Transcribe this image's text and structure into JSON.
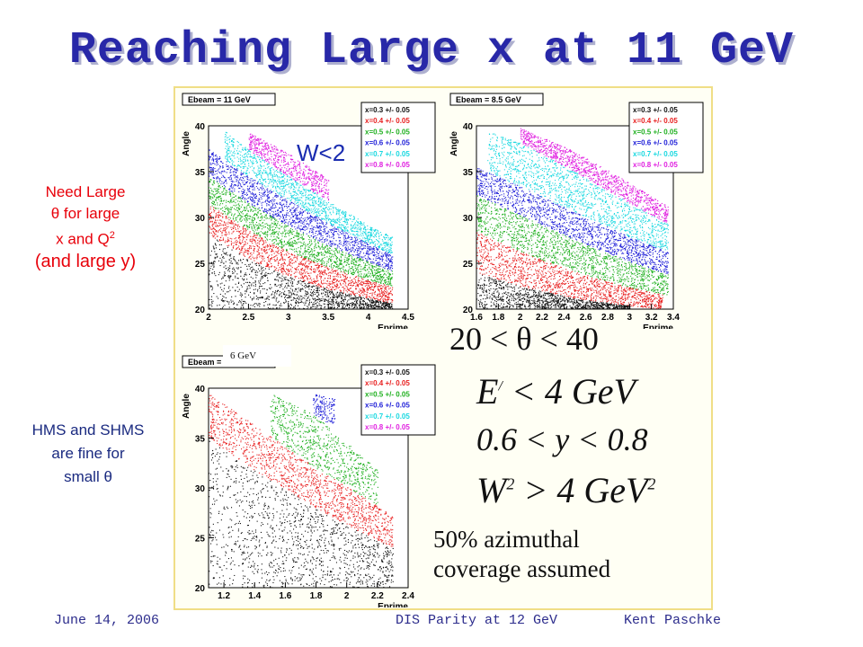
{
  "slide": {
    "title": "Reaching Large x  at 11 GeV",
    "side_red": {
      "line1": "Need Large",
      "line2": "θ for large",
      "line3": "x and Q",
      "sup": "2",
      "line4": "(and large y)"
    },
    "side_blue": {
      "line1": "HMS and SHMS",
      "line2": "are fine for",
      "line3": "small θ"
    },
    "w_label": "W<2",
    "gev_label": "6 GeV",
    "conditions": {
      "c1": "20 < θ < 40",
      "c2a": "E",
      "c2b": "/",
      "c2c": "<  4 GeV",
      "c3": "0.6 <  y  <  0.8",
      "c4a": "W",
      "c4b": "2",
      "c4c": ">  4  GeV",
      "c4d": "2"
    },
    "azimuthal": {
      "line1": "50%  azimuthal",
      "line2": "coverage  assumed"
    },
    "footer": {
      "date": "June 14, 2006",
      "event": "DIS Parity at 12 GeV",
      "author": "Kent Paschke"
    }
  },
  "colors": {
    "x03": "#111111",
    "x04": "#e82020",
    "x05": "#20b020",
    "x06": "#2020d8",
    "x07": "#18d8e0",
    "x08": "#e020e0"
  },
  "chart_data": [
    {
      "type": "scatter",
      "title": "Ebeam = 11 GeV",
      "xlabel": "Eprime",
      "ylabel": "Angle",
      "xlim": [
        2,
        4.5
      ],
      "ylim": [
        20,
        40
      ],
      "xticks": [
        "2",
        "2.5",
        "3",
        "3.5",
        "4",
        "4.5"
      ],
      "yticks": [
        "20",
        "25",
        "30",
        "35",
        "40"
      ],
      "legend": [
        "x=0.3 +/- 0.05",
        "x=0.4 +/- 0.05",
        "x=0.5 +/- 0.05",
        "x=0.6 +/- 0.05",
        "x=0.7 +/- 0.05",
        "x=0.8 +/- 0.05"
      ],
      "legend_position": "top-right",
      "series": [
        {
          "name": "x=0.3 +/- 0.05",
          "color": "#111111",
          "top": [
            [
              2.0,
              28.2
            ],
            [
              2.5,
              25.5
            ],
            [
              3.0,
              23.6
            ],
            [
              3.5,
              22.2
            ],
            [
              4.0,
              21.2
            ],
            [
              4.3,
              20.7
            ]
          ],
          "bottom": [
            [
              2.0,
              20.0
            ],
            [
              4.3,
              20.0
            ]
          ]
        },
        {
          "name": "x=0.4 +/- 0.05",
          "color": "#e82020",
          "top": [
            [
              2.0,
              31.5
            ],
            [
              2.5,
              28.6
            ],
            [
              3.0,
              26.3
            ],
            [
              3.5,
              24.6
            ],
            [
              4.0,
              23.2
            ],
            [
              4.3,
              22.5
            ]
          ],
          "bottom": [
            [
              2.0,
              28.2
            ],
            [
              2.5,
              25.5
            ],
            [
              3.0,
              23.6
            ],
            [
              3.5,
              22.2
            ],
            [
              4.0,
              21.2
            ],
            [
              4.3,
              20.7
            ]
          ]
        },
        {
          "name": "x=0.5 +/- 0.05",
          "color": "#20b020",
          "top": [
            [
              2.0,
              34.5
            ],
            [
              2.5,
              31.6
            ],
            [
              3.0,
              29.1
            ],
            [
              3.5,
              27.0
            ],
            [
              4.0,
              25.2
            ],
            [
              4.3,
              24.2
            ]
          ],
          "bottom": [
            [
              2.0,
              31.5
            ],
            [
              2.5,
              28.6
            ],
            [
              3.0,
              26.3
            ],
            [
              3.5,
              24.6
            ],
            [
              4.0,
              23.2
            ],
            [
              4.3,
              22.5
            ]
          ]
        },
        {
          "name": "x=0.6 +/- 0.05",
          "color": "#2020d8",
          "top": [
            [
              2.0,
              37.5
            ],
            [
              2.5,
              34.5
            ],
            [
              3.0,
              31.9
            ],
            [
              3.5,
              29.4
            ],
            [
              4.0,
              27.2
            ],
            [
              4.3,
              26.0
            ]
          ],
          "bottom": [
            [
              2.0,
              34.5
            ],
            [
              2.5,
              31.6
            ],
            [
              3.0,
              29.1
            ],
            [
              3.5,
              27.0
            ],
            [
              4.0,
              25.2
            ],
            [
              4.3,
              24.2
            ]
          ]
        },
        {
          "name": "x=0.7 +/- 0.05",
          "color": "#18d8e0",
          "top": [
            [
              2.2,
              39.5
            ],
            [
              2.5,
              37.4
            ],
            [
              3.0,
              34.5
            ],
            [
              3.5,
              31.8
            ],
            [
              4.0,
              29.2
            ],
            [
              4.3,
              27.9
            ]
          ],
          "bottom": [
            [
              2.0,
              37.5
            ],
            [
              2.5,
              34.5
            ],
            [
              3.0,
              31.9
            ],
            [
              3.5,
              29.4
            ],
            [
              4.0,
              27.2
            ],
            [
              4.3,
              26.0
            ]
          ]
        },
        {
          "name": "x=0.8 +/- 0.05",
          "color": "#e020e0",
          "top": [
            [
              2.5,
              39.3
            ],
            [
              3.0,
              37.0
            ],
            [
              3.5,
              34.2
            ]
          ],
          "bottom": [
            [
              2.5,
              37.4
            ],
            [
              3.0,
              34.5
            ],
            [
              3.5,
              31.8
            ]
          ]
        }
      ]
    },
    {
      "type": "scatter",
      "title": "Ebeam = 8.5 GeV",
      "xlabel": "Eprime",
      "ylabel": "Angle",
      "xlim": [
        1.6,
        3.4
      ],
      "ylim": [
        20,
        40
      ],
      "xticks": [
        "1.6",
        "1.8",
        "2",
        "2.2",
        "2.4",
        "2.6",
        "2.8",
        "3",
        "3.2",
        "3.4"
      ],
      "yticks": [
        "20",
        "25",
        "30",
        "35",
        "40"
      ],
      "legend": [
        "x=0.3 +/- 0.05",
        "x=0.4 +/- 0.05",
        "x=0.5 +/- 0.05",
        "x=0.6 +/- 0.05",
        "x=0.7 +/- 0.05",
        "x=0.8 +/- 0.05"
      ],
      "legend_position": "top-right",
      "series": [
        {
          "name": "x=0.3 +/- 0.05",
          "color": "#111111",
          "top": [
            [
              1.6,
              24.0
            ],
            [
              2.0,
              22.5
            ],
            [
              2.5,
              21.2
            ],
            [
              3.0,
              20.4
            ]
          ],
          "bottom": [
            [
              1.6,
              20.0
            ],
            [
              3.0,
              20.0
            ]
          ]
        },
        {
          "name": "x=0.4 +/- 0.05",
          "color": "#e82020",
          "top": [
            [
              1.6,
              28.5
            ],
            [
              2.0,
              26.3
            ],
            [
              2.5,
              24.1
            ],
            [
              3.0,
              22.4
            ],
            [
              3.3,
              21.6
            ]
          ],
          "bottom": [
            [
              1.6,
              24.0
            ],
            [
              2.0,
              22.5
            ],
            [
              2.5,
              21.2
            ],
            [
              3.0,
              20.4
            ],
            [
              3.3,
              20.0
            ]
          ]
        },
        {
          "name": "x=0.5 +/- 0.05",
          "color": "#20b020",
          "top": [
            [
              1.6,
              32.5
            ],
            [
              2.0,
              30.3
            ],
            [
              2.5,
              27.6
            ],
            [
              3.0,
              25.2
            ],
            [
              3.35,
              23.8
            ]
          ],
          "bottom": [
            [
              1.6,
              28.5
            ],
            [
              2.0,
              26.3
            ],
            [
              2.5,
              24.1
            ],
            [
              3.0,
              22.4
            ],
            [
              3.35,
              21.6
            ]
          ]
        },
        {
          "name": "x=0.6 +/- 0.05",
          "color": "#2020d8",
          "top": [
            [
              1.6,
              35.5
            ],
            [
              2.0,
              33.4
            ],
            [
              2.5,
              30.6
            ],
            [
              3.0,
              27.9
            ],
            [
              3.35,
              26.3
            ]
          ],
          "bottom": [
            [
              1.6,
              32.5
            ],
            [
              2.0,
              30.3
            ],
            [
              2.5,
              27.6
            ],
            [
              3.0,
              25.2
            ],
            [
              3.35,
              23.8
            ]
          ]
        },
        {
          "name": "x=0.7 +/- 0.05",
          "color": "#18d8e0",
          "top": [
            [
              1.7,
              39.5
            ],
            [
              2.0,
              38.2
            ],
            [
              2.5,
              35.0
            ],
            [
              3.0,
              31.6
            ],
            [
              3.35,
              29.3
            ]
          ],
          "bottom": [
            [
              1.6,
              35.5
            ],
            [
              2.0,
              33.4
            ],
            [
              2.5,
              30.6
            ],
            [
              3.0,
              27.9
            ],
            [
              3.35,
              26.3
            ]
          ]
        },
        {
          "name": "x=0.8 +/- 0.05",
          "color": "#e020e0",
          "top": [
            [
              2.0,
              39.8
            ],
            [
              2.5,
              37.2
            ],
            [
              3.0,
              33.8
            ],
            [
              3.35,
              31.2
            ]
          ],
          "bottom": [
            [
              2.0,
              38.2
            ],
            [
              2.5,
              35.0
            ],
            [
              3.0,
              31.6
            ],
            [
              3.35,
              29.3
            ]
          ]
        }
      ]
    },
    {
      "type": "scatter",
      "title": "Ebeam = 6 GeV",
      "xlabel": "Eprime",
      "ylabel": "Angle",
      "xlim": [
        1.1,
        2.4
      ],
      "ylim": [
        20,
        40
      ],
      "xticks": [
        "1.2",
        "1.4",
        "1.6",
        "1.8",
        "2",
        "2.2",
        "2.4"
      ],
      "yticks": [
        "20",
        "25",
        "30",
        "35",
        "40"
      ],
      "legend": [
        "x=0.3 +/- 0.05",
        "x=0.4 +/- 0.05",
        "x=0.5 +/- 0.05",
        "x=0.6 +/- 0.05",
        "x=0.7 +/- 0.05",
        "x=0.8 +/- 0.05"
      ],
      "legend_position": "top-right",
      "series": [
        {
          "name": "x=0.3 +/- 0.05",
          "color": "#111111",
          "top": [
            [
              1.1,
              35.0
            ],
            [
              1.4,
              31.8
            ],
            [
              1.8,
              28.0
            ],
            [
              2.1,
              25.5
            ],
            [
              2.3,
              24.0
            ]
          ],
          "bottom": [
            [
              1.1,
              20.0
            ],
            [
              2.3,
              20.0
            ]
          ]
        },
        {
          "name": "x=0.4 +/- 0.05",
          "color": "#e82020",
          "top": [
            [
              1.1,
              39.5
            ],
            [
              1.4,
              36.3
            ],
            [
              1.8,
              32.0
            ],
            [
              2.1,
              29.2
            ],
            [
              2.3,
              27.2
            ]
          ],
          "bottom": [
            [
              1.1,
              35.0
            ],
            [
              1.4,
              31.8
            ],
            [
              1.8,
              28.0
            ],
            [
              2.1,
              25.5
            ],
            [
              2.3,
              24.0
            ]
          ]
        },
        {
          "name": "x=0.5 +/- 0.05",
          "color": "#20b020",
          "top": [
            [
              1.5,
              39.6
            ],
            [
              1.8,
              37.2
            ],
            [
              2.1,
              33.2
            ],
            [
              2.2,
              31.8
            ]
          ],
          "bottom": [
            [
              1.5,
              35.2
            ],
            [
              1.8,
              32.0
            ],
            [
              2.1,
              29.2
            ],
            [
              2.2,
              28.2
            ]
          ]
        },
        {
          "name": "x=0.6 +/- 0.05",
          "color": "#2020d8",
          "top": [
            [
              1.78,
              39.5
            ],
            [
              1.92,
              39.0
            ]
          ],
          "bottom": [
            [
              1.78,
              37.5
            ],
            [
              1.92,
              36.0
            ]
          ]
        }
      ]
    }
  ]
}
